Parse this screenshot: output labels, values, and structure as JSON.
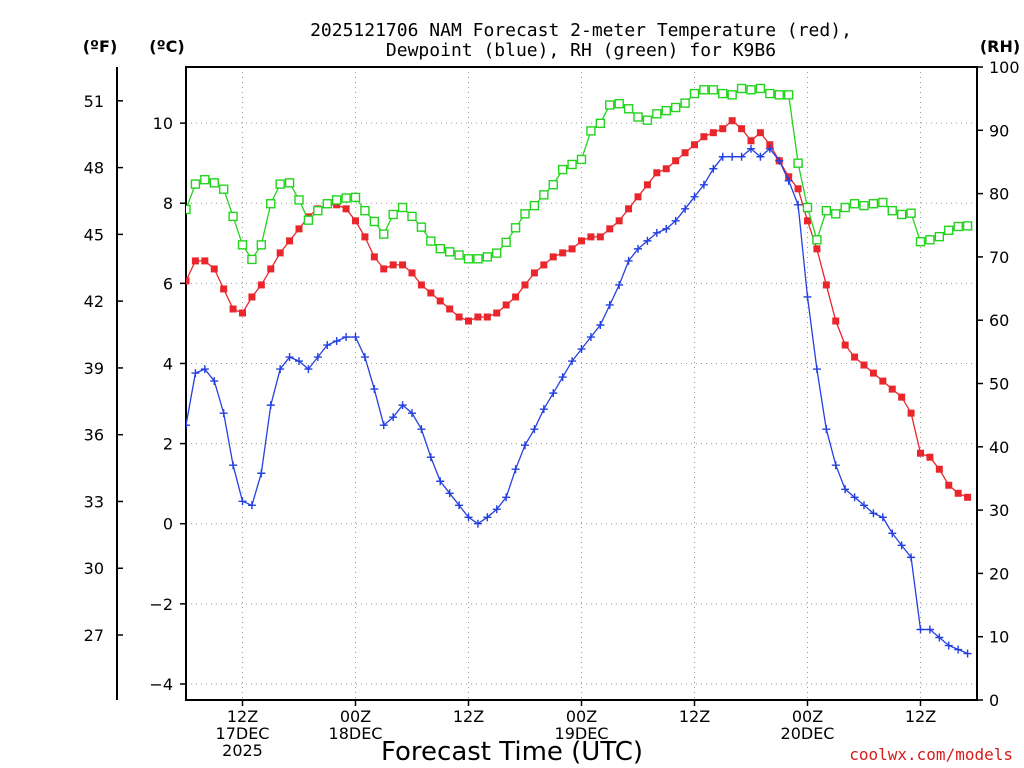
{
  "chart_data": {
    "type": "line",
    "title_line1": "2025121706 NAM Forecast 2-meter Temperature (red),",
    "title_line2": "Dewpoint (blue), RH (green) for K9B6",
    "xlabel": "Forecast Time (UTC)",
    "credit": "coolwx.com/models",
    "units": {
      "fahrenheit": "(ºF)",
      "celsius": "(ºC)",
      "rh": "(RH)"
    },
    "x_range_hours": [
      0,
      84
    ],
    "ylim_c": [
      -4.4,
      11.4
    ],
    "ylim_rh": [
      0,
      100
    ],
    "x_ticks": [
      {
        "hour": 6,
        "lines": [
          "12Z",
          "17DEC",
          "2025"
        ]
      },
      {
        "hour": 18,
        "lines": [
          "00Z",
          "18DEC"
        ]
      },
      {
        "hour": 30,
        "lines": [
          "12Z"
        ]
      },
      {
        "hour": 42,
        "lines": [
          "00Z",
          "19DEC"
        ]
      },
      {
        "hour": 54,
        "lines": [
          "12Z"
        ]
      },
      {
        "hour": 66,
        "lines": [
          "00Z",
          "20DEC"
        ]
      },
      {
        "hour": 78,
        "lines": [
          "12Z"
        ]
      }
    ],
    "y_ticks_c": [
      "−4",
      "−2",
      "0",
      "2",
      "4",
      "6",
      "8",
      "10"
    ],
    "y_ticks_f": [
      "27",
      "30",
      "33",
      "36",
      "39",
      "42",
      "45",
      "48",
      "51"
    ],
    "y_ticks_rh": [
      "0",
      "10",
      "20",
      "30",
      "40",
      "50",
      "60",
      "70",
      "80",
      "90",
      "100"
    ],
    "series": [
      {
        "name": "Temperature (°C)",
        "color": "#e8262b",
        "marker": "filled-square",
        "axis": "celsius",
        "values": [
          6.06,
          6.56,
          6.56,
          6.36,
          5.86,
          5.36,
          5.26,
          5.66,
          5.96,
          6.36,
          6.76,
          7.06,
          7.36,
          7.66,
          7.86,
          7.96,
          7.96,
          7.86,
          7.56,
          7.16,
          6.66,
          6.36,
          6.46,
          6.46,
          6.26,
          5.96,
          5.76,
          5.56,
          5.36,
          5.16,
          5.06,
          5.16,
          5.16,
          5.26,
          5.46,
          5.66,
          5.96,
          6.26,
          6.46,
          6.66,
          6.76,
          6.86,
          7.06,
          7.16,
          7.16,
          7.36,
          7.56,
          7.86,
          8.16,
          8.46,
          8.76,
          8.86,
          9.06,
          9.26,
          9.46,
          9.66,
          9.76,
          9.86,
          10.06,
          9.86,
          9.56,
          9.76,
          9.46,
          9.06,
          8.66,
          8.36,
          7.56,
          6.86,
          5.96,
          5.06,
          4.46,
          4.16,
          3.96,
          3.76,
          3.56,
          3.36,
          3.16,
          2.76,
          1.76,
          1.66,
          1.36,
          0.96,
          0.76,
          0.66
        ]
      },
      {
        "name": "Dewpoint (°C)",
        "color": "#2440e0",
        "marker": "plus",
        "axis": "celsius",
        "values": [
          2.46,
          3.76,
          3.86,
          3.56,
          2.76,
          1.46,
          0.56,
          0.46,
          1.26,
          2.96,
          3.86,
          4.16,
          4.06,
          3.86,
          4.16,
          4.46,
          4.56,
          4.66,
          4.66,
          4.16,
          3.36,
          2.46,
          2.66,
          2.96,
          2.76,
          2.36,
          1.66,
          1.06,
          0.76,
          0.46,
          0.16,
          0.0,
          0.16,
          0.36,
          0.66,
          1.36,
          1.96,
          2.36,
          2.86,
          3.26,
          3.66,
          4.06,
          4.36,
          4.66,
          4.96,
          5.46,
          5.96,
          6.56,
          6.86,
          7.06,
          7.26,
          7.36,
          7.56,
          7.86,
          8.16,
          8.46,
          8.86,
          9.16,
          9.16,
          9.16,
          9.36,
          9.16,
          9.36,
          9.06,
          8.56,
          7.96,
          5.66,
          3.86,
          2.36,
          1.46,
          0.86,
          0.66,
          0.46,
          0.26,
          0.16,
          -0.24,
          -0.54,
          -0.84,
          -2.64,
          -2.64,
          -2.84,
          -3.04,
          -3.14,
          -3.24
        ]
      },
      {
        "name": "RH (%)",
        "color": "#22d41c",
        "marker": "open-square",
        "axis": "rh",
        "values": [
          77.5,
          81.5,
          82.2,
          81.7,
          80.7,
          76.4,
          71.9,
          69.6,
          71.9,
          78.4,
          81.5,
          81.7,
          79.0,
          75.8,
          77.3,
          78.4,
          79.0,
          79.3,
          79.4,
          77.3,
          75.6,
          73.6,
          76.7,
          77.8,
          76.4,
          74.7,
          72.5,
          71.3,
          70.8,
          70.3,
          69.7,
          69.7,
          70.0,
          70.6,
          72.3,
          74.6,
          76.8,
          78.1,
          79.8,
          81.4,
          83.8,
          84.6,
          85.4,
          89.9,
          91.1,
          94.0,
          94.2,
          93.4,
          92.1,
          91.6,
          92.6,
          93.1,
          93.6,
          94.3,
          95.8,
          96.4,
          96.4,
          95.8,
          95.6,
          96.6,
          96.4,
          96.6,
          95.8,
          95.6,
          95.6,
          84.8,
          77.8,
          72.7,
          77.3,
          76.8,
          77.8,
          78.4,
          78.1,
          78.4,
          78.6,
          77.3,
          76.7,
          76.9,
          72.4,
          72.7,
          73.2,
          74.2,
          74.8,
          74.9
        ]
      }
    ]
  }
}
